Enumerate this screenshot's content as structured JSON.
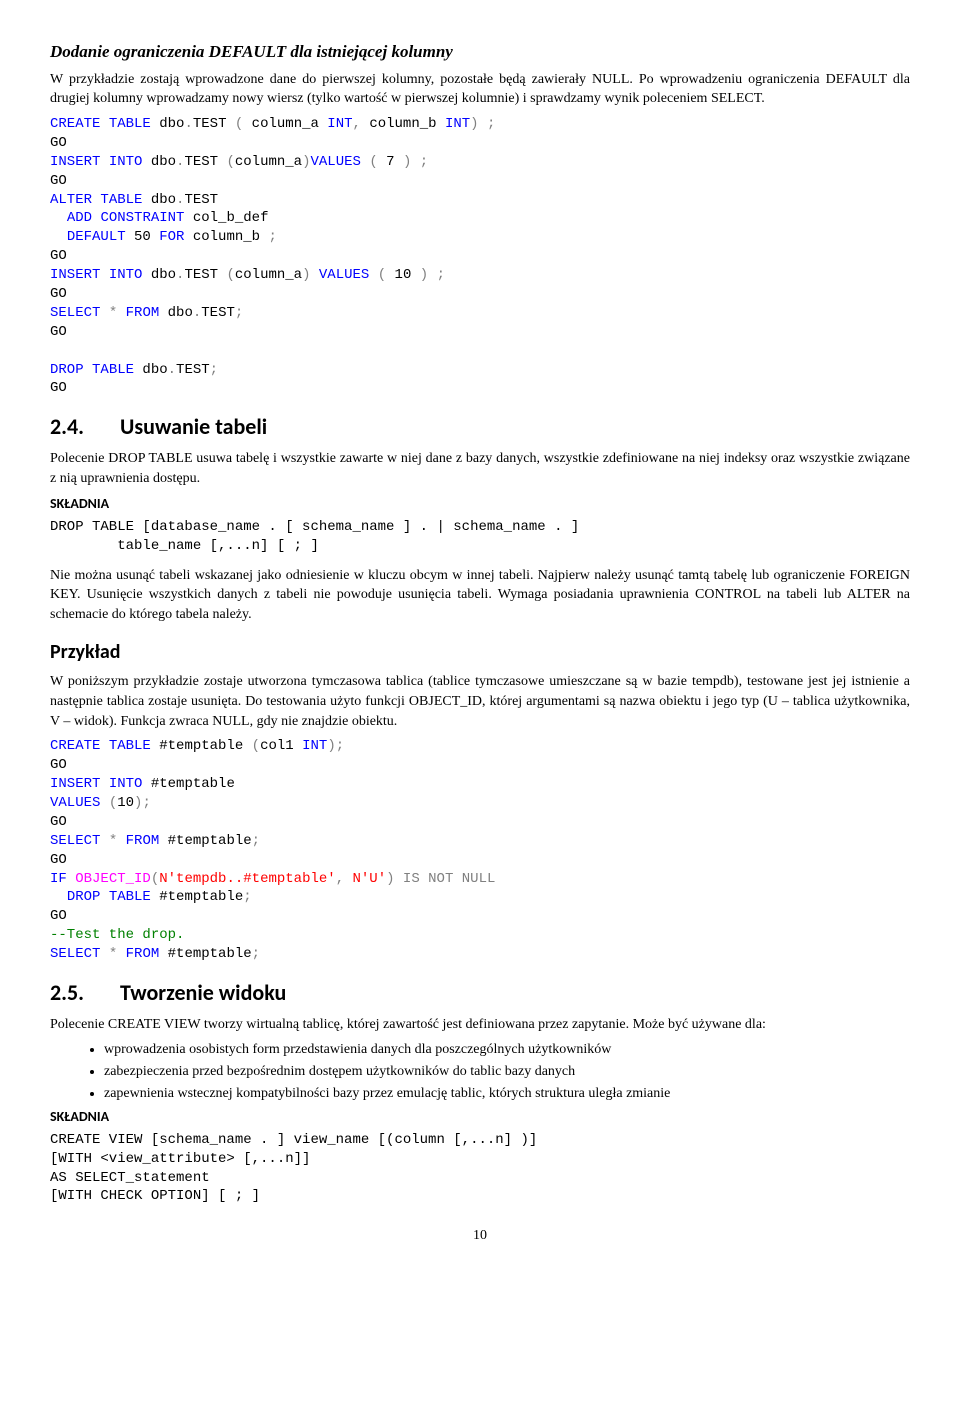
{
  "h1_title": "Dodanie ograniczenia DEFAULT dla istniejącej kolumny",
  "p1": "W przykładzie zostają wprowadzone dane do pierwszej kolumny, pozostałe będą zawierały NULL. Po wprowadzeniu ograniczenia DEFAULT dla drugiej kolumny wprowadzamy nowy wiersz (tylko wartość w pierwszej kolumnie) i sprawdzamy wynik poleceniem SELECT.",
  "h2_1_num": "2.4.",
  "h2_1_title": "Usuwanie tabeli",
  "p2": "Polecenie DROP TABLE usuwa tabelę i wszystkie zawarte w niej dane z bazy danych, wszystkie zdefiniowane na niej indeksy oraz wszystkie związane z nią uprawnienia dostępu.",
  "skladnia_label": "SKŁADNIA",
  "syntax1_l1": "DROP TABLE [database_name . [ schema_name ] . | schema_name . ]",
  "syntax1_l2": "        table_name [,...n] [ ; ]",
  "p3": "Nie można usunąć tabeli wskazanej jako odniesienie w kluczu obcym w innej tabeli. Najpierw należy usunąć tamtą tabelę lub ograniczenie FOREIGN KEY. Usunięcie wszystkich danych z tabeli nie powoduje usunięcia tabeli. Wymaga posiadania uprawnienia CONTROL na tabeli lub ALTER na schemacie do którego tabela należy.",
  "przyklad_label": "Przykład",
  "p4": "W poniższym przykładzie zostaje utworzona tymczasowa tablica (tablice tymczasowe umieszczane są w bazie tempdb), testowane jest jej istnienie a następnie tablica zostaje usunięta. Do testowania użyto funkcji OBJECT_ID, której argumentami są nazwa obiektu i jego typ (U – tablica użytkownika, V – widok). Funkcja zwraca NULL, gdy nie znajdzie obiektu.",
  "h2_2_num": "2.5.",
  "h2_2_title": "Tworzenie widoku",
  "p5": "Polecenie CREATE VIEW tworzy wirtualną tablicę, której zawartość jest definiowana przez zapytanie. Może być używane dla:",
  "li1": "wprowadzenia osobistych form przedstawienia danych dla poszczególnych użytkowników",
  "li2": "zabezpieczenia przed bezpośrednim dostępem użytkowników do tablic bazy danych",
  "li3": "zapewnienia wstecznej kompatybilności bazy przez emulację tablic, których struktura uległa zmianie",
  "syntax2_l1": "CREATE VIEW [schema_name . ] view_name [(column [,...n] )]",
  "syntax2_l2": "[WITH <view_attribute> [,...n]]",
  "syntax2_l3": "AS SELECT_statement",
  "syntax2_l4": "[WITH CHECK OPTION] [ ; ]",
  "pagenum": "10"
}
